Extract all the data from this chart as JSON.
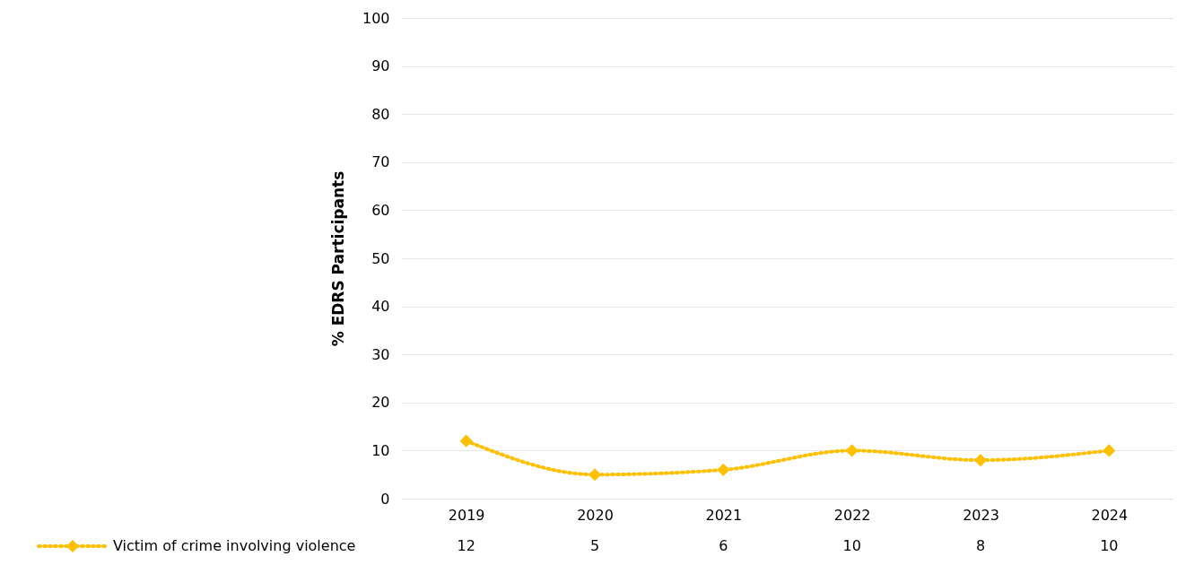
{
  "chart_data": {
    "type": "line",
    "ylabel": "% EDRS Participants",
    "categories": [
      "2019",
      "2020",
      "2021",
      "2022",
      "2023",
      "2024"
    ],
    "series": [
      {
        "name": "Victim of crime involving violence",
        "color": "#ffc000",
        "values": [
          12,
          5,
          6,
          10,
          8,
          10
        ]
      }
    ],
    "ylim": [
      0,
      100
    ],
    "yticks": [
      0,
      10,
      20,
      30,
      40,
      50,
      60,
      70,
      80,
      90,
      100
    ],
    "grid": "y",
    "legend": "bottom",
    "marker": "diamond",
    "line_style": "dotted",
    "data_labels": true
  }
}
